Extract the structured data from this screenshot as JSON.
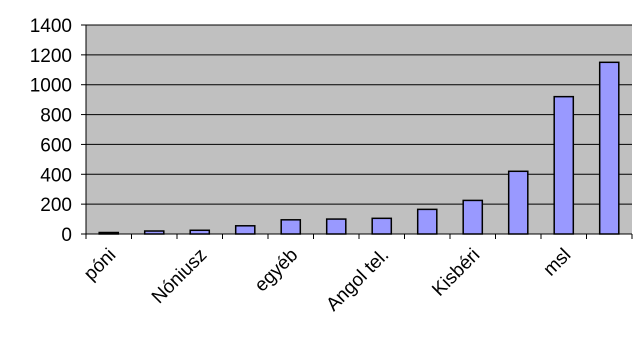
{
  "chart_data": {
    "type": "bar",
    "categories": [
      "póni",
      "",
      "Nóniusz",
      "",
      "egyéb",
      "",
      "Angol tel.",
      "",
      "Kisbéri",
      "",
      "msl",
      ""
    ],
    "values": [
      10,
      20,
      25,
      55,
      95,
      100,
      105,
      165,
      225,
      420,
      920,
      1150
    ],
    "title": "",
    "xlabel": "",
    "ylabel": "",
    "ylim": [
      0,
      1400
    ],
    "yticks": [
      "0",
      "200",
      "400",
      "600",
      "800",
      "1000",
      "1200",
      "1400"
    ],
    "grid": true,
    "legend": "none",
    "colors": {
      "plot_background": "#c0c0c0",
      "bar_fill": "#9999ff",
      "bar_stroke": "#000000",
      "gridline": "#000000"
    }
  }
}
